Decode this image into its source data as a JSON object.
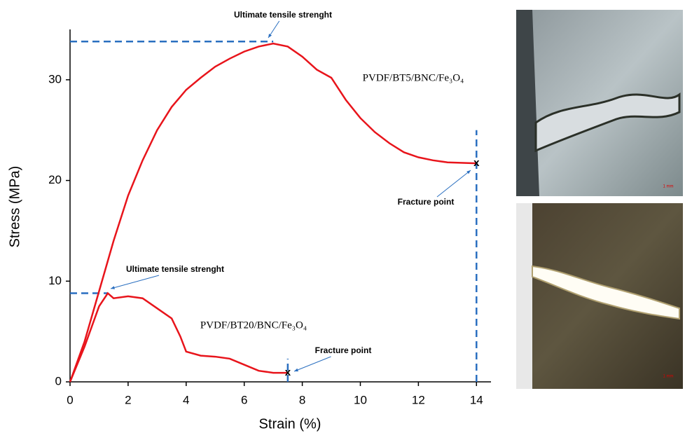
{
  "chart_data": {
    "type": "line",
    "x_label": "Strain (%)",
    "y_label": "Stress (MPa)",
    "xlim": [
      0,
      14.5
    ],
    "ylim": [
      0,
      35
    ],
    "xticks": [
      0,
      2,
      4,
      6,
      8,
      10,
      12,
      14
    ],
    "yticks": [
      0,
      10,
      20,
      30
    ],
    "series": [
      {
        "name": "PVDF/BT5/BNC/Fe₃O₄",
        "color": "#e8141b",
        "x": [
          0,
          0.5,
          1,
          1.5,
          2,
          2.5,
          3,
          3.5,
          4,
          4.5,
          5,
          5.5,
          6,
          6.5,
          7,
          7.5,
          8,
          8.5,
          9,
          9.5,
          10,
          10.5,
          11,
          11.5,
          12,
          12.5,
          13,
          14
        ],
        "values": [
          0,
          4,
          9,
          14,
          18.5,
          22,
          25,
          27.3,
          29,
          30.2,
          31.3,
          32.1,
          32.8,
          33.3,
          33.6,
          33.3,
          32.3,
          31,
          30.2,
          28,
          26.2,
          24.8,
          23.7,
          22.8,
          22.3,
          22,
          21.8,
          21.7
        ]
      },
      {
        "name": "PVDF/BT20/BNC/Fe₃O₄",
        "color": "#e8141b",
        "x": [
          0,
          0.5,
          1,
          1.3,
          1.5,
          2,
          2.5,
          3,
          3.5,
          3.8,
          4,
          4.5,
          5,
          5.5,
          6,
          6.5,
          7,
          7.5
        ],
        "values": [
          0,
          3.5,
          7.5,
          8.8,
          8.3,
          8.5,
          8.3,
          7.3,
          6.3,
          4.5,
          3,
          2.6,
          2.5,
          2.3,
          1.7,
          1.1,
          0.9,
          0.9
        ]
      }
    ],
    "reference_lines": [
      {
        "x": [
          0,
          7
        ],
        "y": [
          33.8,
          33.8
        ]
      },
      {
        "x": [
          14,
          14
        ],
        "y": [
          0,
          25
        ]
      },
      {
        "x": [
          0,
          1.3
        ],
        "y": [
          8.8,
          8.8
        ]
      },
      {
        "x": [
          7.5,
          7.5
        ],
        "y": [
          0,
          2.3
        ]
      }
    ],
    "annotations": [
      "Ultimate tensile strenght",
      "Fracture point",
      "Ultimate tensile strenght",
      "Fracture point"
    ],
    "images": [
      {
        "scale_label": "1 mm"
      },
      {
        "scale_label": "1 mm"
      }
    ]
  }
}
